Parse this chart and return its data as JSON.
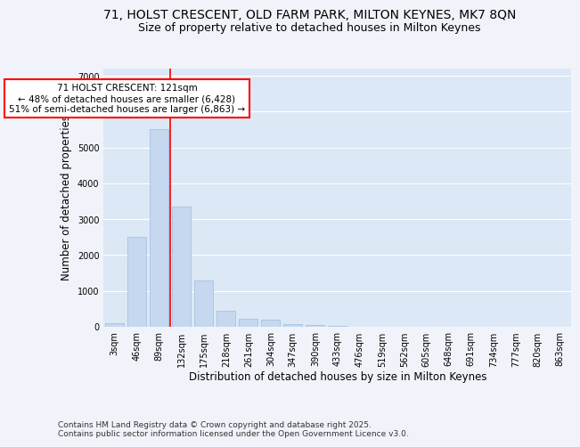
{
  "title_line1": "71, HOLST CRESCENT, OLD FARM PARK, MILTON KEYNES, MK7 8QN",
  "title_line2": "Size of property relative to detached houses in Milton Keynes",
  "xlabel": "Distribution of detached houses by size in Milton Keynes",
  "ylabel": "Number of detached properties",
  "categories": [
    "3sqm",
    "46sqm",
    "89sqm",
    "132sqm",
    "175sqm",
    "218sqm",
    "261sqm",
    "304sqm",
    "347sqm",
    "390sqm",
    "433sqm",
    "476sqm",
    "519sqm",
    "562sqm",
    "605sqm",
    "648sqm",
    "691sqm",
    "734sqm",
    "777sqm",
    "820sqm",
    "863sqm"
  ],
  "values": [
    100,
    2500,
    5500,
    3350,
    1300,
    450,
    220,
    200,
    80,
    50,
    20,
    0,
    0,
    0,
    0,
    0,
    0,
    0,
    0,
    0,
    0
  ],
  "bar_color": "#c5d8f0",
  "bar_edge_color": "#a0bcde",
  "vline_color": "red",
  "vline_pos": 2.5,
  "annotation_text": "71 HOLST CRESCENT: 121sqm\n← 48% of detached houses are smaller (6,428)\n51% of semi-detached houses are larger (6,863) →",
  "annotation_bbox_facecolor": "white",
  "annotation_bbox_edgecolor": "red",
  "ylim": [
    0,
    7200
  ],
  "yticks": [
    0,
    1000,
    2000,
    3000,
    4000,
    5000,
    6000,
    7000
  ],
  "bg_color": "#f0f4fa",
  "plot_bg_color": "#dce8f5",
  "grid_color": "white",
  "footer": "Contains HM Land Registry data © Crown copyright and database right 2025.\nContains public sector information licensed under the Open Government Licence v3.0.",
  "title_fontsize": 10,
  "subtitle_fontsize": 9,
  "axis_label_fontsize": 8.5,
  "tick_fontsize": 7,
  "annotation_fontsize": 7.5,
  "footer_fontsize": 6.5
}
